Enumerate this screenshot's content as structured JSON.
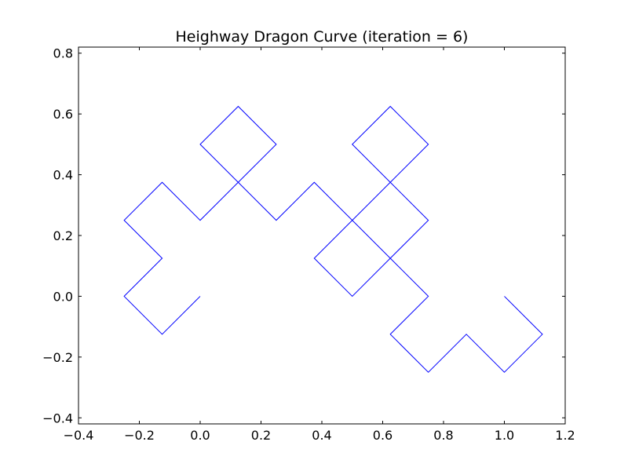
{
  "chart_data": {
    "type": "line",
    "title": "Heighway Dragon Curve  (iteration = 6)",
    "xlabel": "",
    "ylabel": "",
    "xlim": [
      -0.4,
      1.2
    ],
    "ylim": [
      -0.42,
      0.82
    ],
    "xticks": [
      -0.4,
      -0.2,
      0.0,
      0.2,
      0.4,
      0.6,
      0.8,
      1.0,
      1.2
    ],
    "xtick_labels": [
      "−0.4",
      "−0.2",
      "0.0",
      "0.2",
      "0.4",
      "0.6",
      "0.8",
      "1.0",
      "1.2"
    ],
    "yticks": [
      -0.4,
      -0.2,
      0.0,
      0.2,
      0.4,
      0.6,
      0.8
    ],
    "ytick_labels": [
      "−0.4",
      "−0.2",
      "0.0",
      "0.2",
      "0.4",
      "0.6",
      "0.8"
    ],
    "grid": false,
    "series": [
      {
        "color": "#0000ff",
        "points": [
          [
            0,
            0
          ],
          [
            -0.125,
            -0.125
          ],
          [
            -0.25,
            0
          ],
          [
            -0.125,
            0.125
          ],
          [
            -0.25,
            0.25
          ],
          [
            -0.125,
            0.375
          ],
          [
            0,
            0.25
          ],
          [
            0.125,
            0.375
          ],
          [
            0,
            0.5
          ],
          [
            0.125,
            0.625
          ],
          [
            0.25,
            0.5
          ],
          [
            0.125,
            0.375
          ],
          [
            0.25,
            0.25
          ],
          [
            0.375,
            0.375
          ],
          [
            0.5,
            0.25
          ],
          [
            0.375,
            0.125
          ],
          [
            0.5,
            0
          ],
          [
            0.625,
            0.125
          ],
          [
            0.5,
            0.25
          ],
          [
            0.625,
            0.375
          ],
          [
            0.5,
            0.5
          ],
          [
            0.625,
            0.625
          ],
          [
            0.75,
            0.5
          ],
          [
            0.625,
            0.375
          ],
          [
            0.75,
            0.25
          ],
          [
            0.625,
            0.125
          ],
          [
            0.75,
            0
          ],
          [
            0.625,
            -0.125
          ],
          [
            0.75,
            -0.25
          ],
          [
            0.875,
            -0.125
          ],
          [
            1,
            -0.25
          ],
          [
            1.125,
            -0.125
          ],
          [
            1,
            0
          ]
        ]
      }
    ]
  }
}
